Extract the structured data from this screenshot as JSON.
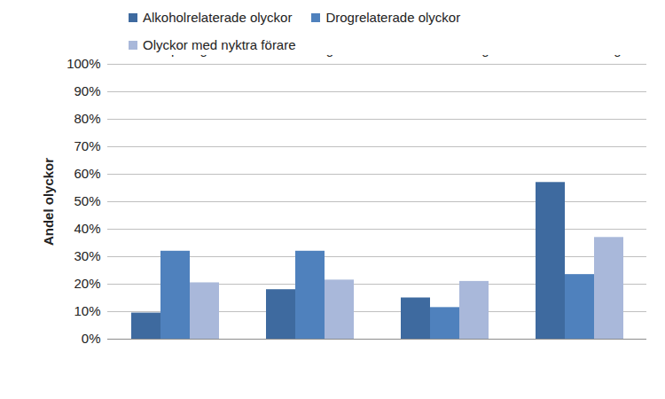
{
  "chart_data": {
    "type": "bar",
    "y_label": "Andel olyckor",
    "categories": [
      "Europaväg",
      "Riksväg",
      "Primär länsväg",
      "Sekundär och tertiär länsväg"
    ],
    "series": [
      {
        "name": "Alkoholrelaterade olyckor",
        "color": "#3e6a9f",
        "values": [
          9.5,
          18,
          15,
          57
        ]
      },
      {
        "name": "Drogrelaterade olyckor",
        "color": "#4f81bd",
        "values": [
          32,
          32,
          11.5,
          23.5
        ]
      },
      {
        "name": "Olyckor med nyktra förare",
        "color": "#a9b8da",
        "values": [
          20.5,
          21.5,
          21,
          37
        ]
      }
    ],
    "ylim": [
      0,
      100
    ],
    "yticks": [
      {
        "value": 0,
        "label": "0%"
      },
      {
        "value": 10,
        "label": "10%"
      },
      {
        "value": 20,
        "label": "20%"
      },
      {
        "value": 30,
        "label": "30%"
      },
      {
        "value": 40,
        "label": "40%"
      },
      {
        "value": 50,
        "label": "50%"
      },
      {
        "value": 60,
        "label": "60%"
      },
      {
        "value": 70,
        "label": "70%"
      },
      {
        "value": 80,
        "label": "80%"
      },
      {
        "value": 90,
        "label": "90%"
      },
      {
        "value": 100,
        "label": "100%"
      }
    ],
    "grid": true,
    "legend": "top"
  }
}
